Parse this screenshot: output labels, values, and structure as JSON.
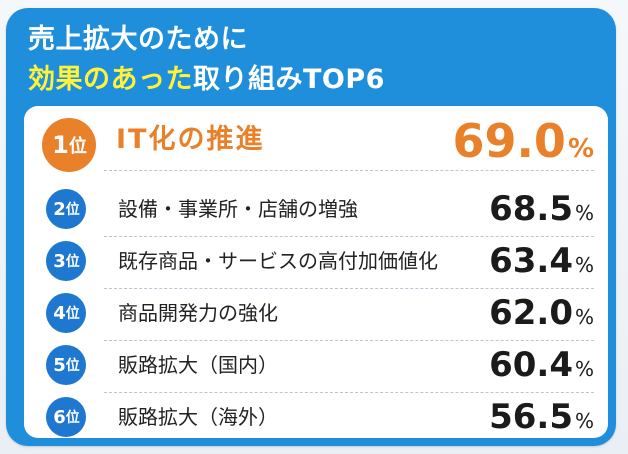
{
  "header": {
    "title_line1": "売上拡大のために",
    "title_line2_highlight": "効果のあった",
    "title_line2_rest": "取り組みTOP6"
  },
  "colors": {
    "panel_blue": "#1f8fdb",
    "badge_blue": "#1f78cf",
    "highlight_yellow": "#fff23a",
    "top_orange": "#e8812a"
  },
  "chart_data": {
    "type": "table",
    "title": "売上拡大のために効果のあった取り組みTOP6",
    "rank_unit": "位",
    "value_unit": "%",
    "rows": [
      {
        "rank": "1",
        "label": "IT化の推進",
        "value": "69.0"
      },
      {
        "rank": "2",
        "label": "設備・事業所・店舗の増強",
        "value": "68.5"
      },
      {
        "rank": "3",
        "label": "既存商品・サービスの高付加価値化",
        "value": "63.4"
      },
      {
        "rank": "4",
        "label": "商品開発力の強化",
        "value": "62.0"
      },
      {
        "rank": "5",
        "label": "販路拡大（国内）",
        "value": "60.4"
      },
      {
        "rank": "6",
        "label": "販路拡大（海外）",
        "value": "56.5"
      }
    ]
  }
}
